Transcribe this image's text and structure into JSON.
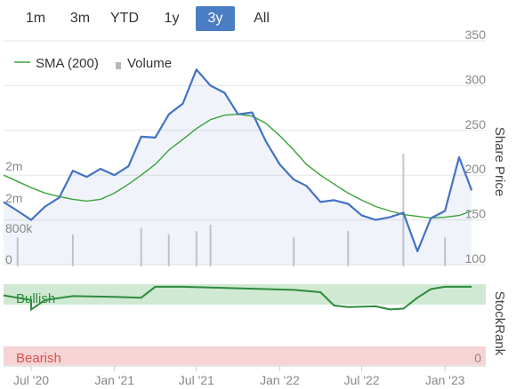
{
  "range_buttons": [
    {
      "label": "1m",
      "active": false
    },
    {
      "label": "3m",
      "active": false
    },
    {
      "label": "YTD",
      "active": false
    },
    {
      "label": "1y",
      "active": false
    },
    {
      "label": "3y",
      "active": true
    },
    {
      "label": "All",
      "active": false
    }
  ],
  "colors": {
    "price": "#4472c4",
    "sma": "#3aa33a",
    "volume": "#c8c8cc",
    "bullish": "#2e8b3d",
    "bullish_bg": "#cfe9d3",
    "bearish_bg": "#f6d4d6",
    "bearish_text": "#d9534f",
    "neutral": "#9e9e9e",
    "active_button": "#4a7dc3"
  },
  "legend": {
    "sma_label": "SMA (200)",
    "volume_label": "Volume"
  },
  "stockrank_panel": {
    "title": "StockRank",
    "bullish_label": "Bullish",
    "bearish_label": "Bearish",
    "bearish_value": "0"
  },
  "chart_data": {
    "type": "line",
    "x_ticks": [
      "Jul '20",
      "Jan '21",
      "Jul '21",
      "Jan '22",
      "Jul '22",
      "Jan '23"
    ],
    "price_axis": {
      "label": "Share Price",
      "ticks": [
        "100",
        "150",
        "200",
        "250",
        "300",
        "350"
      ],
      "ylim": [
        100,
        350
      ]
    },
    "volume_axis": {
      "ticks": [
        "0",
        "800k",
        "2m",
        "2m"
      ],
      "ylim": [
        0,
        4000000
      ]
    },
    "dates": [
      "2020-05",
      "2020-06",
      "2020-07",
      "2020-08",
      "2020-09",
      "2020-10",
      "2020-11",
      "2020-12",
      "2021-01",
      "2021-02",
      "2021-03",
      "2021-04",
      "2021-05",
      "2021-06",
      "2021-07",
      "2021-08",
      "2021-09",
      "2021-10",
      "2021-11",
      "2021-12",
      "2022-01",
      "2022-02",
      "2022-03",
      "2022-04",
      "2022-05",
      "2022-06",
      "2022-07",
      "2022-08",
      "2022-09",
      "2022-10",
      "2022-11",
      "2022-12",
      "2023-01",
      "2023-02",
      "2023-03"
    ],
    "series": [
      {
        "name": "Share Price",
        "values": [
          170,
          160,
          150,
          165,
          175,
          205,
          198,
          207,
          200,
          210,
          243,
          242,
          268,
          280,
          318,
          300,
          292,
          268,
          270,
          238,
          212,
          195,
          188,
          170,
          172,
          168,
          155,
          150,
          153,
          158,
          115,
          152,
          160,
          220,
          183
        ]
      },
      {
        "name": "SMA (200)",
        "values": [
          200,
          193,
          186,
          180,
          176,
          173,
          171,
          173,
          180,
          190,
          200,
          212,
          228,
          240,
          252,
          262,
          267,
          268,
          266,
          258,
          244,
          228,
          212,
          200,
          190,
          180,
          172,
          165,
          160,
          156,
          154,
          152,
          153,
          155,
          160
        ]
      }
    ],
    "volume_peaks": [
      {
        "date": "2020-06",
        "value": 900000
      },
      {
        "date": "2020-10",
        "value": 1000000
      },
      {
        "date": "2021-03",
        "value": 1200000
      },
      {
        "date": "2021-05",
        "value": 1000000
      },
      {
        "date": "2021-07",
        "value": 1100000
      },
      {
        "date": "2021-08",
        "value": 1300000
      },
      {
        "date": "2022-02",
        "value": 900000
      },
      {
        "date": "2022-06",
        "value": 1100000
      },
      {
        "date": "2022-10",
        "value": 3500000
      },
      {
        "date": "2023-01",
        "value": 900000
      }
    ],
    "stockrank": {
      "dates": [
        "2020-05",
        "2020-07",
        "2020-07",
        "2020-08",
        "2020-10",
        "2021-01",
        "2021-03",
        "2021-04",
        "2021-06",
        "2021-08",
        "2021-10",
        "2021-12",
        "2022-02",
        "2022-04",
        "2022-05",
        "2022-06",
        "2022-08",
        "2022-09",
        "2022-10",
        "2022-11",
        "2022-12",
        "2023-01",
        "2023-03"
      ],
      "values": [
        88,
        82,
        70,
        82,
        87,
        86,
        85,
        99,
        99,
        98,
        97,
        96,
        95,
        92,
        75,
        73,
        74,
        70,
        71,
        85,
        96,
        99,
        99
      ]
    }
  }
}
